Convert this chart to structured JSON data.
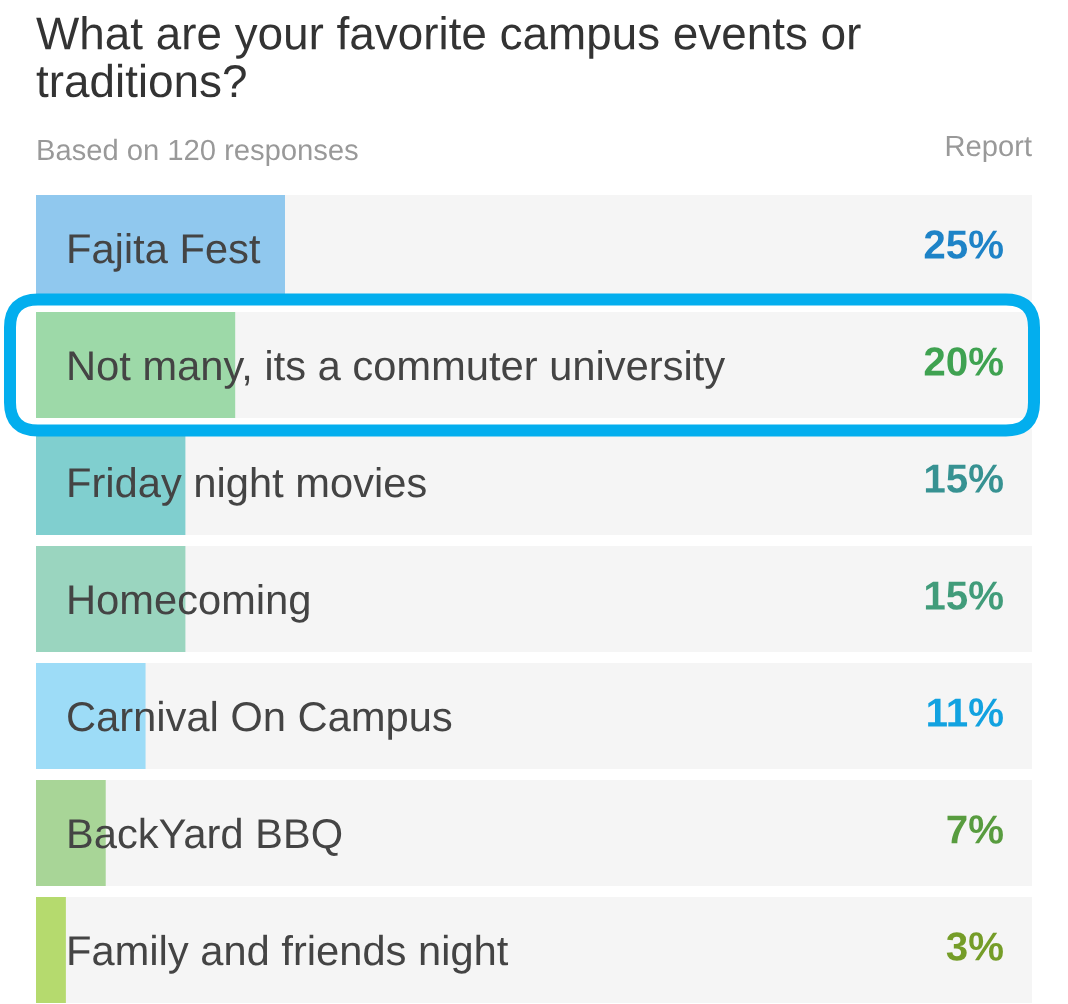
{
  "chart_data": {
    "type": "bar",
    "orientation": "horizontal",
    "title": "What are your favorite campus events or traditions?",
    "subtitle": "Based on 120 responses",
    "annotations": [
      "Report"
    ],
    "categories": [
      "Fajita Fest",
      "Not many, its a commuter university",
      "Friday night movies",
      "Homecoming",
      "Carnival On Campus",
      "BackYard BBQ",
      "Family and friends night"
    ],
    "values": [
      25,
      20,
      15,
      15,
      11,
      7,
      3
    ],
    "value_labels": [
      "25%",
      "20%",
      "15%",
      "15%",
      "11%",
      "7%",
      "3%"
    ],
    "colors": [
      "#90c8ee",
      "#9dd9a8",
      "#80cfcf",
      "#9ad5bf",
      "#9ddcf7",
      "#a8d597",
      "#b5da6e"
    ],
    "xlim": [
      0,
      100
    ],
    "tick_labels": "y",
    "grid": false
  }
}
